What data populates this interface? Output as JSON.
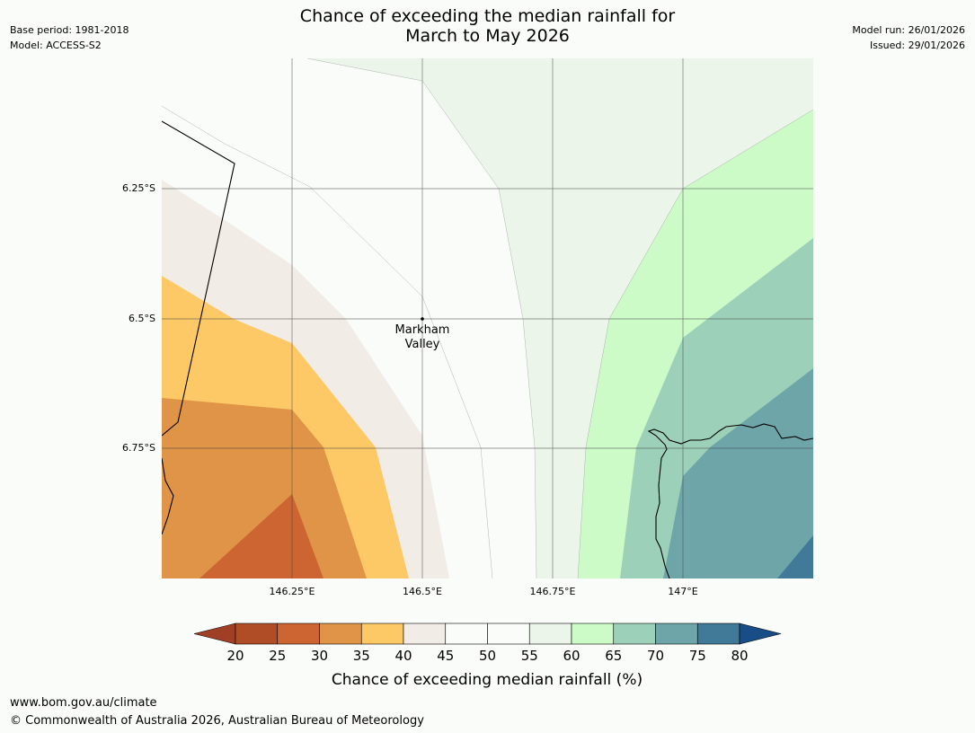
{
  "header": {
    "base_period": "Base period: 1981-2018",
    "model": "Model: ACCESS-S2",
    "title_line1": "Chance of exceeding the median rainfall for",
    "title_line2": "March to May 2026",
    "model_run": "Model run: 26/01/2026",
    "issued": "Issued: 29/01/2026"
  },
  "map": {
    "lat_labels": [
      "6.25°S",
      "6.5°S",
      "6.75°S"
    ],
    "lon_labels": [
      "146.25°E",
      "146.5°E",
      "146.75°E",
      "147°E"
    ],
    "place_label": [
      "Markham",
      "Valley"
    ],
    "extent": {
      "lon_min": 146.0,
      "lon_max": 147.25,
      "lat_top": -6.0,
      "lat_bottom": -7.0
    }
  },
  "legend": {
    "title": "Chance of exceeding median rainfall (%)",
    "ticks": [
      "20",
      "25",
      "30",
      "35",
      "40",
      "45",
      "50",
      "55",
      "60",
      "65",
      "70",
      "75",
      "80"
    ],
    "colors": [
      "#a13f26",
      "#b14d26",
      "#cc6531",
      "#e09447",
      "#fdc966",
      "#f1ece6",
      "#fafcf9",
      "#fafcf9",
      "#ebf5ea",
      "#ccfbc8",
      "#9dd0b9",
      "#6ea5a8",
      "#417999",
      "#184d87"
    ]
  },
  "footer": {
    "url": "www.bom.gov.au/climate",
    "copyright": "© Commonwealth of Australia 2026, Australian Bureau of Meteorology"
  }
}
